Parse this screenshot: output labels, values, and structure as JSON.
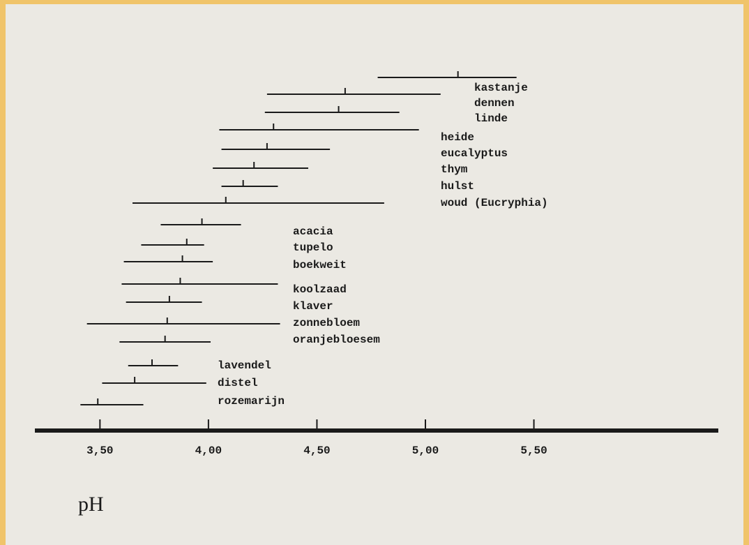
{
  "chart_data": {
    "type": "range",
    "x_label": "pH",
    "categories": [
      "kastanje",
      "dennen",
      "linde",
      "heide",
      "eucalyptus",
      "thym",
      "hulst",
      "woud (Eucryphia)",
      "acacia",
      "tupelo",
      "boekweit",
      "koolzaad",
      "klaver",
      "zonnebloem",
      "oranjebloesem",
      "lavendel",
      "distel",
      "rozemarijn"
    ],
    "low": [
      4.78,
      4.27,
      4.26,
      4.05,
      4.06,
      4.02,
      4.06,
      3.65,
      3.78,
      3.69,
      3.61,
      3.6,
      3.62,
      3.44,
      3.59,
      3.63,
      3.51,
      3.41
    ],
    "high": [
      5.42,
      5.07,
      4.88,
      4.97,
      4.56,
      4.46,
      4.32,
      4.81,
      4.15,
      3.98,
      4.02,
      4.32,
      3.97,
      4.33,
      4.01,
      3.86,
      3.99,
      3.7
    ],
    "typical": [
      5.15,
      4.63,
      4.6,
      4.3,
      4.27,
      4.21,
      4.16,
      4.08,
      3.97,
      3.9,
      3.88,
      3.87,
      3.82,
      3.81,
      3.8,
      3.74,
      3.66,
      3.49
    ],
    "color": "#1a1a1a",
    "xlim": [
      3.2,
      6.35
    ],
    "xticks": [
      {
        "value": 3.5,
        "label": "3,50"
      },
      {
        "value": 4.0,
        "label": "4,00"
      },
      {
        "value": 4.5,
        "label": "4,50"
      },
      {
        "value": 5.0,
        "label": "5,00"
      },
      {
        "value": 5.5,
        "label": "5,50"
      }
    ]
  }
}
